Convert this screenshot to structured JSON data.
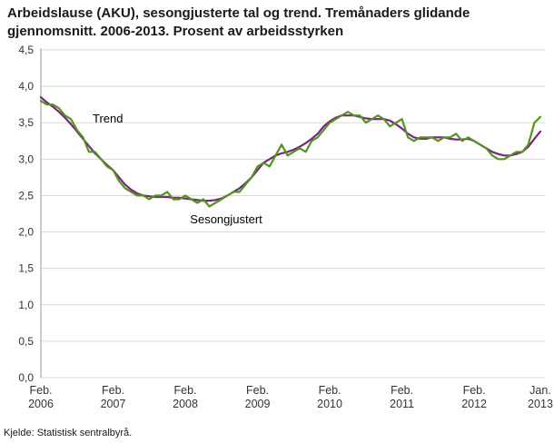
{
  "page": {
    "title": "Arbeidslause (AKU), sesongjusterte tal og trend. Tremånaders glidande gjennomsnitt. 2006-2013. Prosent av arbeidsstyrken",
    "source": "Kjelde: Statistisk sentralbyrå."
  },
  "chart_data": {
    "type": "line",
    "title": "Arbeidslause (AKU), sesongjusterte tal og trend. Tremånaders glidande gjennomsnitt. 2006-2013. Prosent av arbeidsstyrken",
    "xlabel": "",
    "ylabel": "Prosent av arbeidsstyrken",
    "ylim": [
      0,
      4.5
    ],
    "ytick_step": 0.5,
    "ytick_labels": [
      "0,0",
      "0,5",
      "1,0",
      "1,5",
      "2,0",
      "2,5",
      "3,0",
      "3,5",
      "4,0",
      "4,5"
    ],
    "grid": true,
    "legend_position": "inline-annotations",
    "n_months": 84,
    "x_start": "Feb. 2006",
    "x_end": "Jan. 2013",
    "xticks": [
      {
        "index": 0,
        "line1": "Feb.",
        "line2": "2006"
      },
      {
        "index": 12,
        "line1": "Feb.",
        "line2": "2007"
      },
      {
        "index": 24,
        "line1": "Feb.",
        "line2": "2008"
      },
      {
        "index": 36,
        "line1": "Feb.",
        "line2": "2009"
      },
      {
        "index": 48,
        "line1": "Feb.",
        "line2": "2010"
      },
      {
        "index": 60,
        "line1": "Feb.",
        "line2": "2011"
      },
      {
        "index": 72,
        "line1": "Feb.",
        "line2": "2012"
      },
      {
        "index": 83,
        "line1": "Jan.",
        "line2": "2013"
      }
    ],
    "series": [
      {
        "name": "Trend",
        "color": "#7b2482",
        "values": [
          3.85,
          3.78,
          3.72,
          3.65,
          3.57,
          3.48,
          3.38,
          3.28,
          3.18,
          3.08,
          3.0,
          2.92,
          2.85,
          2.75,
          2.65,
          2.58,
          2.53,
          2.5,
          2.49,
          2.48,
          2.48,
          2.48,
          2.47,
          2.47,
          2.46,
          2.45,
          2.44,
          2.43,
          2.43,
          2.44,
          2.46,
          2.5,
          2.55,
          2.6,
          2.67,
          2.75,
          2.85,
          2.95,
          3.0,
          3.05,
          3.08,
          3.1,
          3.13,
          3.17,
          3.22,
          3.28,
          3.35,
          3.45,
          3.52,
          3.57,
          3.6,
          3.6,
          3.6,
          3.58,
          3.56,
          3.55,
          3.55,
          3.55,
          3.53,
          3.48,
          3.42,
          3.35,
          3.3,
          3.28,
          3.28,
          3.3,
          3.3,
          3.3,
          3.28,
          3.27,
          3.27,
          3.28,
          3.25,
          3.2,
          3.15,
          3.1,
          3.07,
          3.05,
          3.05,
          3.07,
          3.1,
          3.17,
          3.28,
          3.38
        ]
      },
      {
        "name": "Sesongjustert",
        "color": "#53951c",
        "values": [
          3.8,
          3.75,
          3.75,
          3.7,
          3.6,
          3.55,
          3.4,
          3.3,
          3.1,
          3.1,
          3.0,
          2.9,
          2.85,
          2.7,
          2.6,
          2.55,
          2.5,
          2.5,
          2.45,
          2.5,
          2.5,
          2.55,
          2.45,
          2.45,
          2.5,
          2.45,
          2.4,
          2.45,
          2.35,
          2.4,
          2.45,
          2.5,
          2.55,
          2.55,
          2.65,
          2.75,
          2.9,
          2.95,
          2.9,
          3.05,
          3.2,
          3.05,
          3.1,
          3.15,
          3.1,
          3.25,
          3.3,
          3.4,
          3.5,
          3.55,
          3.6,
          3.65,
          3.6,
          3.6,
          3.5,
          3.55,
          3.6,
          3.55,
          3.45,
          3.5,
          3.55,
          3.3,
          3.25,
          3.3,
          3.3,
          3.3,
          3.25,
          3.3,
          3.3,
          3.35,
          3.25,
          3.3,
          3.25,
          3.2,
          3.15,
          3.05,
          3.0,
          3.0,
          3.05,
          3.1,
          3.1,
          3.2,
          3.5,
          3.58
        ]
      }
    ],
    "annotations": [
      {
        "text": "Trend",
        "month": 8.6,
        "value": 3.5
      },
      {
        "text": "Sesongjustert",
        "month": 24.8,
        "value": 2.12
      }
    ],
    "colors": {
      "grid": "#d9d9d9",
      "axis": "#999999",
      "tick_text": "#333333",
      "annotation": "#000000"
    }
  }
}
